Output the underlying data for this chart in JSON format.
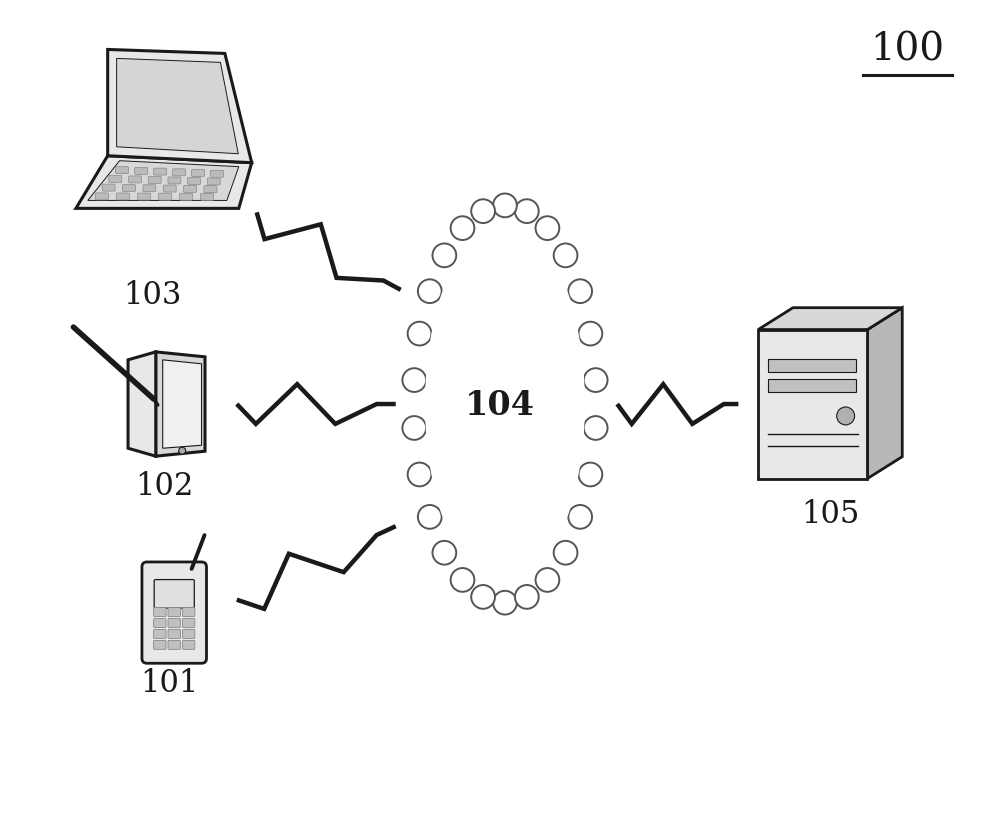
{
  "bg_color": "#ffffff",
  "label_100": "100",
  "label_104": "104",
  "label_101": "101",
  "label_102": "102",
  "label_103": "103",
  "label_105": "105",
  "label_fontsize": 22,
  "ref_fontsize": 28,
  "figsize": [
    10.0,
    8.2
  ],
  "dark": "#1a1a1a",
  "light_gray": "#e8e8e8",
  "mid_gray": "#c8c8c8",
  "cloud_fill": "#ffffff",
  "cloud_edge": "#555555"
}
